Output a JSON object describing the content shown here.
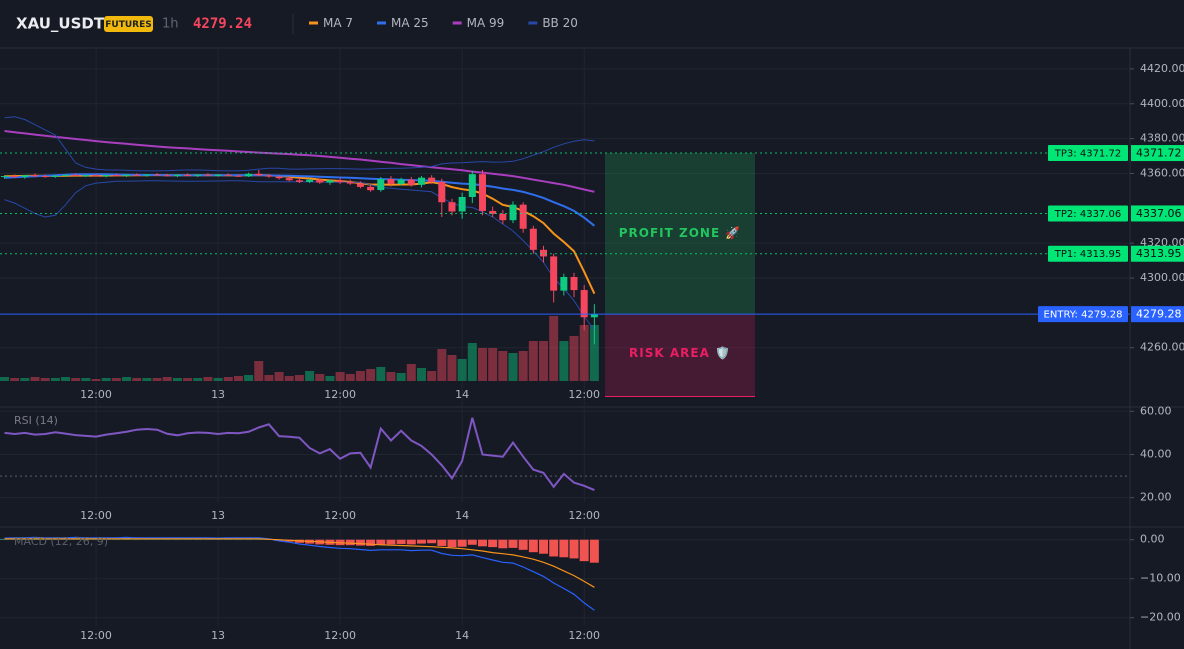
{
  "header": {
    "symbol": "XAU_USDT",
    "badge": "FUTURES",
    "interval": "1h",
    "price": 4279.24
  },
  "chart_data": [
    {
      "type": "candlestick",
      "categories": [
        null,
        null,
        null,
        null,
        null,
        null,
        null,
        null,
        null,
        "12:00",
        null,
        null,
        null,
        null,
        null,
        null,
        null,
        null,
        null,
        null,
        null,
        "13",
        null,
        null,
        null,
        null,
        null,
        null,
        null,
        null,
        null,
        null,
        null,
        "12:00",
        null,
        null,
        null,
        null,
        null,
        null,
        null,
        null,
        null,
        null,
        null,
        "14",
        null,
        null,
        null,
        null,
        null,
        null,
        null,
        null,
        null,
        null,
        null,
        "12:00",
        null
      ],
      "open": [
        4358,
        4358.5,
        4358,
        4359,
        4358.5,
        4358,
        4358.8,
        4359.2,
        4358.6,
        4359,
        4358.4,
        4359.1,
        4358.7,
        4359.3,
        4358.9,
        4359.4,
        4359,
        4358.6,
        4359.2,
        4358.8,
        4359.3,
        4358.9,
        4359.2,
        4358.7,
        4358.4,
        4359.8,
        4358.9,
        4358.2,
        4357.3,
        4356.1,
        4355.2,
        4356.4,
        4354.8,
        4356,
        4355,
        4354.2,
        4352.3,
        4350.5,
        4356.8,
        4354,
        4356.5,
        4353.5,
        4357.6,
        4355.2,
        4343.5,
        4338.2,
        4346.5,
        4359.6,
        4338.5,
        4336.8,
        4333.2,
        4342.1,
        4328.3,
        4316.2,
        4312.4,
        4292.8,
        4300.6,
        4293.1,
        4277.5
      ],
      "high": [
        4359,
        4359.5,
        4359,
        4360,
        4359.5,
        4359,
        4359.5,
        4360,
        4359.4,
        4359.8,
        4359.2,
        4359.9,
        4359.5,
        4360,
        4359.6,
        4360.2,
        4359.8,
        4359.4,
        4360,
        4359.5,
        4360.1,
        4359.7,
        4360,
        4359.5,
        4360.5,
        4362,
        4359.6,
        4359,
        4358.5,
        4357.5,
        4357,
        4357,
        4356.5,
        4357.5,
        4356.5,
        4355.5,
        4353.5,
        4358,
        4358.5,
        4357.5,
        4358,
        4358.5,
        4359,
        4357,
        4345.5,
        4349,
        4361.5,
        4362,
        4341,
        4339,
        4344,
        4343.5,
        4330,
        4318.5,
        4314,
        4302.5,
        4303,
        4296,
        4285
      ],
      "low": [
        4357,
        4357.5,
        4357,
        4358,
        4357.5,
        4357.5,
        4358,
        4358.5,
        4358,
        4358.2,
        4357.8,
        4358.5,
        4358,
        4358.6,
        4358.2,
        4358.8,
        4358.3,
        4357.9,
        4358.5,
        4358,
        4358.7,
        4358.2,
        4358.4,
        4358,
        4358,
        4358.5,
        4357.5,
        4356.5,
        4355.5,
        4354.5,
        4354.5,
        4354,
        4353.5,
        4354,
        4353.5,
        4351.5,
        4349.5,
        4349.5,
        4352.5,
        4353,
        4352.5,
        4352,
        4354,
        4335,
        4336,
        4334,
        4343,
        4336,
        4335,
        4331,
        4331.5,
        4326,
        4314,
        4309,
        4286,
        4290,
        4289,
        4270,
        4262
      ],
      "close": [
        4358.5,
        4358,
        4359,
        4358.5,
        4358,
        4358.8,
        4359.2,
        4358.6,
        4359,
        4358.4,
        4359.1,
        4358.7,
        4359.3,
        4358.9,
        4359.4,
        4359,
        4358.6,
        4359.2,
        4358.8,
        4359.3,
        4358.9,
        4359.2,
        4358.7,
        4358.4,
        4359.8,
        4358.9,
        4358.2,
        4357.3,
        4356.1,
        4355.2,
        4356.4,
        4354.8,
        4356,
        4355,
        4354.2,
        4352.3,
        4350.4,
        4356.8,
        4354,
        4356.5,
        4353.5,
        4357.6,
        4355.2,
        4343.5,
        4338.2,
        4346.5,
        4359.6,
        4338.5,
        4336.8,
        4333.2,
        4342.1,
        4328.3,
        4316.2,
        4312.4,
        4292.8,
        4300.6,
        4293.1,
        4277.5,
        4279.24
      ],
      "volume": [
        4,
        3,
        3,
        4,
        3,
        3,
        4,
        3,
        3,
        2,
        3,
        3,
        4,
        3,
        3,
        3,
        4,
        3,
        3,
        3,
        4,
        3,
        4,
        5,
        6,
        20,
        6,
        9,
        5,
        6,
        10,
        7,
        5,
        9,
        7,
        10,
        12,
        14,
        9,
        8,
        17,
        13,
        10,
        32,
        26,
        22,
        38,
        33,
        33,
        30,
        28,
        30,
        40,
        40,
        65,
        40,
        45,
        56,
        56
      ],
      "vlim": [
        0,
        70
      ],
      "up_color": "#0ecb81",
      "down_color": "#f6465d",
      "series": [
        {
          "name": "MA 7",
          "color": "#f7931a",
          "values": [
            4358.4,
            4358.5,
            4358.6,
            4358.7,
            4358.6,
            4358.6,
            4358.7,
            4358.8,
            4358.8,
            4358.8,
            4358.8,
            4358.9,
            4358.9,
            4359,
            4359,
            4359.1,
            4359,
            4359,
            4359,
            4359,
            4359,
            4359,
            4358.9,
            4358.9,
            4359,
            4359.1,
            4358.9,
            4358.6,
            4358.1,
            4357.5,
            4357.1,
            4356.5,
            4356,
            4355.7,
            4355.1,
            4354.5,
            4353.6,
            4353.7,
            4353.5,
            4353.7,
            4353.7,
            4354.2,
            4355,
            4354,
            4352.2,
            4351,
            4350.2,
            4348.5,
            4345.5,
            4342,
            4340.7,
            4338.5,
            4335.5,
            4331.5,
            4325.5,
            4320.7,
            4315.4,
            4303.6,
            4291
          ]
        },
        {
          "name": "MA 25",
          "color": "#2f6fed",
          "values": [
            4357.5,
            4357.8,
            4358.1,
            4358.4,
            4358.7,
            4359,
            4359.3,
            4359.5,
            4359.6,
            4359.6,
            4359.5,
            4359.4,
            4359.3,
            4359.2,
            4359.1,
            4359.1,
            4359,
            4359,
            4359,
            4359,
            4359,
            4359,
            4359,
            4359,
            4359,
            4359,
            4358.9,
            4358.8,
            4358.7,
            4358.5,
            4358.3,
            4358.1,
            4357.9,
            4357.7,
            4357.5,
            4357.3,
            4357,
            4356.8,
            4356.6,
            4356.4,
            4356.2,
            4356,
            4355.8,
            4355.3,
            4354.7,
            4354.2,
            4353.9,
            4353.2,
            4352.4,
            4351.4,
            4350.6,
            4349.4,
            4347.8,
            4346,
            4343.5,
            4341.2,
            4338.5,
            4334.6,
            4330
          ]
        },
        {
          "name": "MA 99",
          "color": "#a93fbf",
          "values": [
            4384.4,
            4383.7,
            4383,
            4382.3,
            4381.6,
            4381,
            4380.4,
            4379.8,
            4379.2,
            4378.6,
            4378,
            4377.5,
            4377,
            4376.5,
            4376,
            4375.5,
            4375.1,
            4374.7,
            4374.4,
            4374,
            4373.6,
            4373.3,
            4373,
            4372.6,
            4372.3,
            4372,
            4371.7,
            4371.4,
            4371.1,
            4370.8,
            4370.5,
            4370,
            4369.5,
            4369,
            4368.5,
            4368,
            4367.4,
            4366.7,
            4366.1,
            4365.4,
            4364.8,
            4364.2,
            4363.6,
            4363,
            4362.4,
            4361.8,
            4361.1,
            4360.5,
            4359.8,
            4359.2,
            4358.5,
            4357.5,
            4356.5,
            4355.5,
            4354.5,
            4353.5,
            4352.2,
            4350.8,
            4349.5
          ]
        },
        {
          "name": "BB 20",
          "color": "#2848a8",
          "upper": [
            4392,
            4392.5,
            4391,
            4388,
            4385,
            4382,
            4374,
            4366,
            4363.5,
            4362.5,
            4362,
            4362,
            4361.8,
            4361.6,
            4361.5,
            4361.5,
            4361.6,
            4361.8,
            4362,
            4362,
            4361.8,
            4361.6,
            4361.5,
            4361.5,
            4361.8,
            4362.5,
            4363,
            4363,
            4362.5,
            4362.5,
            4362.6,
            4362.7,
            4362.8,
            4362.8,
            4362.6,
            4362.5,
            4362.5,
            4362.8,
            4363,
            4363,
            4363.2,
            4363.5,
            4364,
            4365.5,
            4366,
            4366.2,
            4366.5,
            4366.8,
            4366.5,
            4366.6,
            4367,
            4368.5,
            4370.5,
            4372.5,
            4375,
            4377,
            4378.5,
            4379.3,
            4378.7
          ],
          "lower": [
            4345,
            4343,
            4340,
            4337,
            4335,
            4336,
            4342,
            4349,
            4353,
            4354.5,
            4355,
            4355.5,
            4355.6,
            4355.7,
            4355.8,
            4355.8,
            4355.7,
            4355.6,
            4355.5,
            4355.5,
            4355.6,
            4355.7,
            4355.8,
            4355.8,
            4355.6,
            4355.3,
            4355.2,
            4355.2,
            4355.3,
            4355.3,
            4355.2,
            4355.1,
            4355,
            4355,
            4355,
            4355,
            4353.5,
            4352,
            4351.5,
            4351,
            4350.5,
            4350,
            4349.5,
            4346,
            4343,
            4341,
            4340.5,
            4338,
            4335,
            4331,
            4327,
            4321.5,
            4315.5,
            4309,
            4300,
            4294,
            4287,
            4278,
            4270
          ]
        }
      ],
      "ylim": [
        4226,
        4432
      ],
      "yticks": [
        {
          "value": 4420,
          "label": "4420.00"
        },
        {
          "value": 4400,
          "label": "4400.00"
        },
        {
          "value": 4380,
          "label": "4380.00"
        },
        {
          "value": 4360,
          "label": "4360.00"
        },
        {
          "value": 4320,
          "label": "4320.00"
        },
        {
          "value": 4300,
          "label": "4300.00"
        },
        {
          "value": 4260,
          "label": "4260.00"
        }
      ],
      "targets": [
        {
          "label": "TP3: 4371.72",
          "value": 4371.72,
          "color": "#00e676"
        },
        {
          "label": "TP2: 4337.06",
          "value": 4337.06,
          "color": "#00e676"
        },
        {
          "label": "TP1: 4313.95",
          "value": 4313.95,
          "color": "#00e676"
        }
      ],
      "entry": {
        "label": "ENTRY: 4279.28",
        "value": 4279.28,
        "color": "#2962ff"
      },
      "stop": 4232,
      "zones": [
        {
          "label": "PROFIT ZONE 🚀",
          "color": "#22c55e"
        },
        {
          "label": "RISK AREA 🛡️",
          "color": "#e91e63"
        }
      ]
    },
    {
      "type": "line",
      "title": "RSI (14)",
      "color": "#7e57c2",
      "categories": [
        null,
        null,
        null,
        null,
        null,
        null,
        null,
        null,
        null,
        "12:00",
        null,
        null,
        null,
        null,
        null,
        null,
        null,
        null,
        null,
        null,
        null,
        "13",
        null,
        null,
        null,
        null,
        null,
        null,
        null,
        null,
        null,
        null,
        null,
        "12:00",
        null,
        null,
        null,
        null,
        null,
        null,
        null,
        null,
        null,
        null,
        null,
        "14",
        null,
        null,
        null,
        null,
        null,
        null,
        null,
        null,
        null,
        null,
        null,
        "12:00",
        null
      ],
      "values": [
        50,
        49.5,
        50,
        49.2,
        49.5,
        50.3,
        49.7,
        49,
        48.6,
        48.3,
        49.2,
        49.8,
        50.5,
        51.5,
        51.8,
        51.5,
        49.6,
        48.9,
        49.8,
        50.2,
        50,
        49.5,
        50,
        49.8,
        50.5,
        52.5,
        54,
        48.5,
        48.2,
        47.8,
        43,
        40.5,
        42.5,
        38,
        40.5,
        40.8,
        34,
        52,
        46.5,
        51,
        46.5,
        44,
        40,
        35,
        29,
        37,
        57,
        40,
        39.5,
        39,
        45.5,
        39,
        33,
        31.5,
        25,
        31,
        27,
        25.5,
        23.5
      ],
      "reference_line": 30,
      "ylim": [
        18,
        62
      ],
      "yticks": [
        {
          "value": 60,
          "label": "60.00"
        },
        {
          "value": 40,
          "label": "40.00"
        },
        {
          "value": 20,
          "label": "20.00"
        }
      ]
    },
    {
      "type": "macd",
      "title": "MACD (12, 26, 9)",
      "categories": [
        null,
        null,
        null,
        null,
        null,
        null,
        null,
        null,
        null,
        "12:00",
        null,
        null,
        null,
        null,
        null,
        null,
        null,
        null,
        null,
        null,
        null,
        "13",
        null,
        null,
        null,
        null,
        null,
        null,
        null,
        null,
        null,
        null,
        null,
        "12:00",
        null,
        null,
        null,
        null,
        null,
        null,
        null,
        null,
        null,
        null,
        null,
        "14",
        null,
        null,
        null,
        null,
        null,
        null,
        null,
        null,
        null,
        null,
        null,
        "12:00",
        null
      ],
      "histogram": [
        0.2,
        0.3,
        0.3,
        0.4,
        0.3,
        0.3,
        0.3,
        0.4,
        0.3,
        0.3,
        0.3,
        0.3,
        0.4,
        0.3,
        0.3,
        0.3,
        0.3,
        0.3,
        0.3,
        0.3,
        0.3,
        0.2,
        0.3,
        0.3,
        0.3,
        0.3,
        0.1,
        -0.3,
        -0.5,
        -0.8,
        -1,
        -1.2,
        -1.3,
        -1.4,
        -1.4,
        -1.5,
        -1.6,
        -1.3,
        -1.2,
        -1.1,
        -1.2,
        -1,
        -0.9,
        -1.6,
        -1.9,
        -1.8,
        -1.3,
        -1.7,
        -1.9,
        -2.2,
        -2.1,
        -2.6,
        -3.2,
        -3.6,
        -4.3,
        -4.5,
        -4.8,
        -5.5,
        -5.9
      ],
      "up_color": "#26a69a",
      "down_color": "#f05350",
      "series": [
        {
          "color": "#2962ff",
          "values": [
            0.4,
            0.5,
            0.5,
            0.6,
            0.5,
            0.5,
            0.5,
            0.6,
            0.5,
            0.5,
            0.5,
            0.5,
            0.6,
            0.5,
            0.5,
            0.5,
            0.5,
            0.5,
            0.5,
            0.5,
            0.5,
            0.4,
            0.5,
            0.5,
            0.5,
            0.5,
            0.2,
            -0.3,
            -0.65,
            -1.1,
            -1.4,
            -1.75,
            -2,
            -2.2,
            -2.3,
            -2.5,
            -2.75,
            -2.6,
            -2.6,
            -2.6,
            -2.8,
            -2.7,
            -2.7,
            -3.55,
            -4,
            -4.1,
            -3.9,
            -4.6,
            -5.2,
            -5.8,
            -6,
            -7,
            -8.2,
            -9.4,
            -11.1,
            -12.5,
            -14,
            -16.2,
            -18.1
          ]
        },
        {
          "color": "#f7931a",
          "values": [
            0.2,
            0.2,
            0.2,
            0.2,
            0.2,
            0.2,
            0.2,
            0.2,
            0.2,
            0.2,
            0.2,
            0.2,
            0.2,
            0.2,
            0.2,
            0.2,
            0.2,
            0.2,
            0.2,
            0.2,
            0.2,
            0.2,
            0.2,
            0.2,
            0.2,
            0.2,
            0.1,
            0,
            -0.15,
            -0.3,
            -0.4,
            -0.55,
            -0.7,
            -0.8,
            -0.9,
            -1,
            -1.15,
            -1.3,
            -1.4,
            -1.5,
            -1.6,
            -1.7,
            -1.8,
            -1.95,
            -2.1,
            -2.3,
            -2.6,
            -2.9,
            -3.3,
            -3.6,
            -3.9,
            -4.4,
            -5,
            -5.8,
            -6.8,
            -8,
            -9.2,
            -10.7,
            -12.2
          ]
        }
      ],
      "ylim": [
        -22,
        3
      ],
      "yticks": [
        {
          "value": 0,
          "label": "0.00"
        },
        {
          "value": -10,
          "label": "−10.00"
        },
        {
          "value": -20,
          "label": "−20.00"
        }
      ]
    }
  ]
}
